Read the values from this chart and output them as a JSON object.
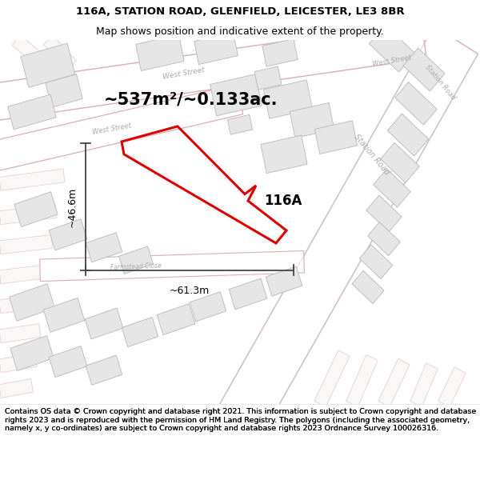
{
  "title_line1": "116A, STATION ROAD, GLENFIELD, LEICESTER, LE3 8BR",
  "title_line2": "Map shows position and indicative extent of the property.",
  "area_label": "~537m²/~0.133ac.",
  "width_label": "~61.3m",
  "height_label": "~46.6m",
  "plot_label": "116A",
  "footer_text": "Contains OS data © Crown copyright and database right 2021. This information is subject to Crown copyright and database rights 2023 and is reproduced with the permission of HM Land Registry. The polygons (including the associated geometry, namely x, y co-ordinates) are subject to Crown copyright and database rights 2023 Ordnance Survey 100026316.",
  "map_bg": "#f7f6f4",
  "road_fill": "#ffffff",
  "road_edge": "#e8b8b8",
  "road_edge2": "#c8c8c8",
  "bld_fill": "#e8e8e8",
  "bld_edge": "#bbbbbb",
  "red_color": "#dd0000",
  "meas_color": "#444444",
  "title_fs": 9.5,
  "area_fs": 15,
  "meas_fs": 9,
  "plot_fs": 12,
  "footer_fs": 6.8
}
